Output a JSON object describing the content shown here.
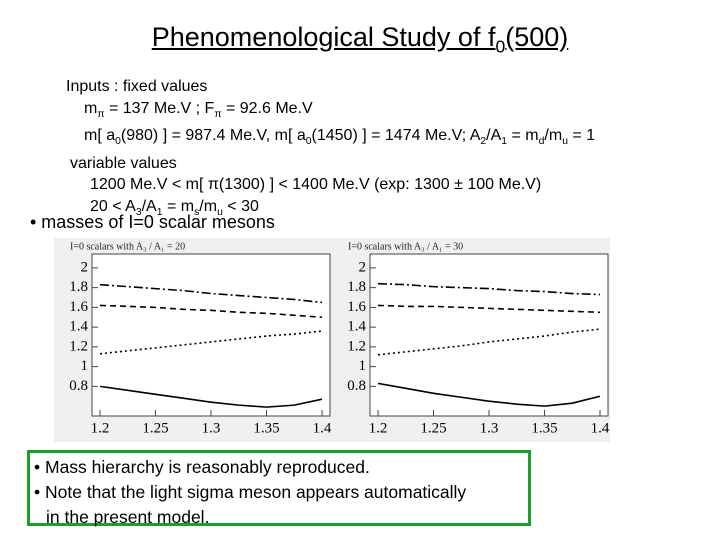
{
  "title": [
    "Phenomenological Study of f",
    "0",
    "(500)"
  ],
  "inputs": [
    [
      "Inputs : fixed values"
    ],
    [
      "m",
      "π",
      " = 137 Me.V ; F",
      "π",
      " = 92.6 Me.V"
    ],
    [
      "m[ a",
      "0",
      "(980) ] = 987.4 Me.V, m[ a",
      "0",
      "(1450) ] = 1474 Me.V; A",
      "2",
      "/A",
      "1",
      " = m",
      "d",
      "/m",
      "u",
      " = 1"
    ],
    [
      "variable values"
    ],
    [
      "1200 Me.V < m[ π(1300) ] < 1400 Me.V (exp: 1300 ± 100 Me.V)"
    ],
    [
      "20 < A",
      "3",
      "/A",
      "1",
      " = m",
      "s",
      "/m",
      "u",
      " < 30"
    ]
  ],
  "bullet": "• masses of I=0 scalar mesons",
  "chart_data": [
    {
      "type": "line",
      "title": "I=0 scalars with A₃ / A₁ = 20",
      "x": [
        1.2,
        1.225,
        1.25,
        1.275,
        1.3,
        1.325,
        1.35,
        1.375,
        1.4
      ],
      "xlim": [
        1.2,
        1.4
      ],
      "ylim": [
        0.5,
        2.1
      ],
      "xticks": [
        1.2,
        1.25,
        1.3,
        1.35,
        1.4
      ],
      "yticks": [
        0.8,
        1,
        1.2,
        1.4,
        1.6,
        1.8,
        2
      ],
      "series": [
        {
          "color": "#000000",
          "dash": "9 3 2 3",
          "values": [
            1.83,
            1.81,
            1.79,
            1.77,
            1.74,
            1.72,
            1.7,
            1.68,
            1.65
          ]
        },
        {
          "color": "#000000",
          "dash": "6 4",
          "values": [
            1.62,
            1.61,
            1.6,
            1.58,
            1.57,
            1.55,
            1.54,
            1.52,
            1.5
          ]
        },
        {
          "color": "#000000",
          "dash": "2 3",
          "values": [
            1.13,
            1.16,
            1.19,
            1.22,
            1.25,
            1.28,
            1.31,
            1.33,
            1.36
          ]
        },
        {
          "color": "#000000",
          "dash": "none",
          "values": [
            0.8,
            0.76,
            0.72,
            0.68,
            0.64,
            0.61,
            0.59,
            0.61,
            0.67
          ]
        }
      ]
    },
    {
      "type": "line",
      "title": "I=0 scalars with A₃ / A₁ = 30",
      "x": [
        1.2,
        1.225,
        1.25,
        1.275,
        1.3,
        1.325,
        1.35,
        1.375,
        1.4
      ],
      "xlim": [
        1.2,
        1.4
      ],
      "ylim": [
        0.5,
        2.1
      ],
      "xticks": [
        1.2,
        1.25,
        1.3,
        1.35,
        1.4
      ],
      "yticks": [
        0.8,
        1,
        1.2,
        1.4,
        1.6,
        1.8,
        2
      ],
      "series": [
        {
          "color": "#000000",
          "dash": "9 3 2 3",
          "values": [
            1.84,
            1.83,
            1.81,
            1.8,
            1.79,
            1.77,
            1.76,
            1.74,
            1.73
          ]
        },
        {
          "color": "#000000",
          "dash": "6 4",
          "values": [
            1.62,
            1.61,
            1.61,
            1.6,
            1.59,
            1.58,
            1.57,
            1.56,
            1.55
          ]
        },
        {
          "color": "#000000",
          "dash": "2 3",
          "values": [
            1.12,
            1.15,
            1.18,
            1.21,
            1.25,
            1.28,
            1.31,
            1.35,
            1.38
          ]
        },
        {
          "color": "#000000",
          "dash": "none",
          "values": [
            0.83,
            0.78,
            0.73,
            0.69,
            0.65,
            0.62,
            0.6,
            0.63,
            0.7
          ]
        }
      ]
    }
  ],
  "notes": [
    "• Mass hierarchy is reasonably reproduced.",
    "• Note that the light sigma meson appears automatically",
    "in the present model."
  ]
}
